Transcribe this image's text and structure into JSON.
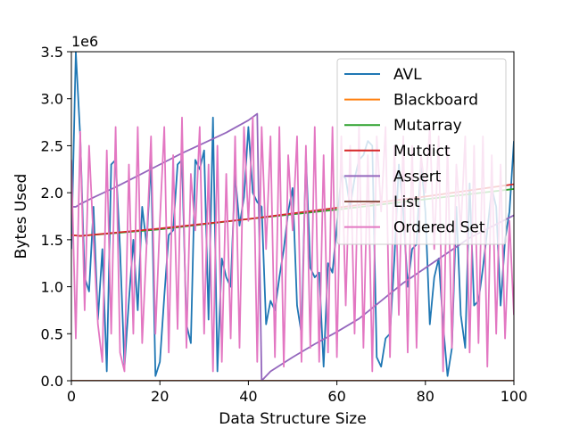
{
  "chart_data": {
    "type": "line",
    "title": "",
    "xlabel": "Data Structure Size",
    "ylabel": "Bytes Used",
    "y_multiplier_label": "1e6",
    "xlim": [
      0,
      100
    ],
    "ylim": [
      0,
      3500000
    ],
    "xticks": [
      0,
      20,
      40,
      60,
      80,
      100
    ],
    "yticks": [
      0,
      500000,
      1000000,
      1500000,
      2000000,
      2500000,
      3000000,
      3500000
    ],
    "ytick_labels": [
      "0.0",
      "0.5",
      "1.0",
      "1.5",
      "2.0",
      "2.5",
      "3.0",
      "3.5"
    ],
    "grid": false,
    "legend_position": "top-right",
    "series": [
      {
        "name": "AVL",
        "color": "#1f77b4",
        "x": [
          0,
          1,
          2,
          3,
          4,
          5,
          6,
          7,
          8,
          9,
          10,
          11,
          12,
          13,
          14,
          15,
          16,
          17,
          18,
          19,
          20,
          21,
          22,
          23,
          24,
          25,
          26,
          27,
          28,
          29,
          30,
          31,
          32,
          33,
          34,
          35,
          36,
          37,
          38,
          39,
          40,
          41,
          42,
          43,
          44,
          45,
          46,
          47,
          48,
          49,
          50,
          51,
          52,
          53,
          54,
          55,
          56,
          57,
          58,
          59,
          60,
          61,
          62,
          63,
          64,
          65,
          66,
          67,
          68,
          69,
          70,
          71,
          72,
          73,
          74,
          75,
          76,
          77,
          78,
          79,
          80,
          81,
          82,
          83,
          84,
          85,
          86,
          87,
          88,
          89,
          90,
          91,
          92,
          93,
          94,
          95,
          96,
          97,
          98,
          99,
          100
        ],
        "values": [
          1400000,
          3500000,
          2600000,
          1100000,
          950000,
          1850000,
          650000,
          1400000,
          100000,
          2300000,
          2350000,
          1400000,
          150000,
          850000,
          1500000,
          750000,
          1850000,
          1450000,
          2350000,
          50000,
          200000,
          900000,
          1550000,
          1600000,
          2300000,
          2350000,
          600000,
          400000,
          2350000,
          2250000,
          2450000,
          650000,
          2800000,
          100000,
          1300000,
          1100000,
          1000000,
          2200000,
          1650000,
          1950000,
          2700000,
          2000000,
          1900000,
          1850000,
          600000,
          850000,
          750000,
          1100000,
          1400000,
          1800000,
          2050000,
          800000,
          500000,
          2400000,
          1200000,
          1100000,
          1150000,
          150000,
          1250000,
          1150000,
          1650000,
          2200000,
          2150000,
          1850000,
          2150000,
          2350000,
          2400000,
          2550000,
          2500000,
          250000,
          150000,
          450000,
          500000,
          1300000,
          2300000,
          1800000,
          1000000,
          1400000,
          1450000,
          2350000,
          1800000,
          600000,
          1100000,
          1300000,
          600000,
          50000,
          350000,
          1850000,
          700000,
          350000,
          2100000,
          800000,
          850000,
          1200000,
          1600000,
          2050000,
          1850000,
          800000,
          1500000,
          1800000,
          2550000
        ]
      },
      {
        "name": "Blackboard",
        "color": "#ff7f0e",
        "x": [
          0,
          100
        ],
        "values": [
          0,
          0
        ]
      },
      {
        "name": "Mutarray",
        "color": "#2ca02c",
        "x": [
          0,
          2,
          20,
          40,
          60,
          80,
          100
        ],
        "values": [
          1550000,
          1540000,
          1610000,
          1720000,
          1820000,
          1930000,
          2040000
        ]
      },
      {
        "name": "Mutdict",
        "color": "#d62728",
        "x": [
          0,
          2,
          20,
          40,
          60,
          80,
          100
        ],
        "values": [
          1550000,
          1540000,
          1620000,
          1720000,
          1840000,
          1960000,
          2090000
        ]
      },
      {
        "name": "Assert",
        "color": "#9467bd",
        "x": [
          0,
          1,
          2,
          5,
          10,
          15,
          20,
          25,
          30,
          35,
          40,
          42,
          43,
          45,
          50,
          55,
          60,
          65,
          70,
          75,
          80,
          85,
          90,
          95,
          100
        ],
        "values": [
          1850000,
          1850000,
          1880000,
          1950000,
          2060000,
          2180000,
          2300000,
          2420000,
          2530000,
          2640000,
          2770000,
          2840000,
          0,
          100000,
          250000,
          390000,
          520000,
          660000,
          850000,
          1040000,
          1200000,
          1360000,
          1520000,
          1640000,
          1760000
        ]
      },
      {
        "name": "List",
        "color": "#8c564b",
        "x": [
          0,
          100
        ],
        "values": [
          0,
          0
        ]
      },
      {
        "name": "Ordered Set",
        "color": "#e377c2",
        "x": [
          0,
          1,
          2,
          3,
          4,
          5,
          6,
          7,
          8,
          9,
          10,
          11,
          12,
          13,
          14,
          15,
          16,
          17,
          18,
          19,
          20,
          21,
          22,
          23,
          24,
          25,
          26,
          27,
          28,
          29,
          30,
          31,
          32,
          33,
          34,
          35,
          36,
          37,
          38,
          39,
          40,
          41,
          42,
          43,
          44,
          45,
          46,
          47,
          48,
          49,
          50,
          51,
          52,
          53,
          54,
          55,
          56,
          57,
          58,
          59,
          60,
          61,
          62,
          63,
          64,
          65,
          66,
          67,
          68,
          69,
          70,
          71,
          72,
          73,
          74,
          75,
          76,
          77,
          78,
          79,
          80,
          81,
          82,
          83,
          84,
          85,
          86,
          87,
          88,
          89,
          90,
          91,
          92,
          93,
          94,
          95,
          96,
          97,
          98,
          99,
          100
        ],
        "values": [
          2350000,
          450000,
          2650000,
          750000,
          2500000,
          1500000,
          600000,
          200000,
          2450000,
          500000,
          2700000,
          300000,
          100000,
          2300000,
          500000,
          2700000,
          400000,
          1450000,
          2600000,
          500000,
          1700000,
          2700000,
          300000,
          2400000,
          550000,
          2800000,
          350000,
          2200000,
          1600000,
          2700000,
          500000,
          2300000,
          100000,
          2500000,
          200000,
          2200000,
          450000,
          2600000,
          350000,
          2700000,
          1700000,
          2800000,
          200000,
          2700000,
          1400000,
          2600000,
          250000,
          2700000,
          150000,
          2400000,
          1600000,
          2600000,
          200000,
          2500000,
          350000,
          2700000,
          200000,
          2400000,
          300000,
          2700000,
          250000,
          2600000,
          800000,
          2500000,
          500000,
          2700000,
          350000,
          2400000,
          100000,
          2600000,
          1800000,
          2700000,
          250000,
          2500000,
          700000,
          2600000,
          300000,
          2500000,
          350000,
          2400000,
          2000000,
          2700000,
          1400000,
          2600000,
          100000,
          2500000,
          350000,
          2300000,
          1600000,
          2600000,
          300000,
          2500000,
          400000,
          2600000,
          150000,
          2400000,
          500000,
          2300000,
          450000,
          1700000,
          700000
        ]
      }
    ]
  }
}
